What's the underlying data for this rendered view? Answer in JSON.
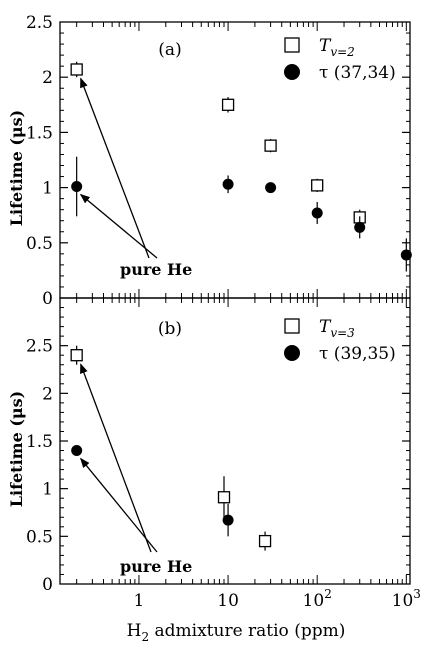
{
  "chart_data": [
    {
      "type": "scatter",
      "panel_label": "(a)",
      "ylabel": "Lifetime (μs)",
      "xscale": "log",
      "xlim": [
        0.13,
        1100
      ],
      "ylim": [
        0,
        2.5
      ],
      "yticks": [
        0,
        0.5,
        1,
        1.5,
        2,
        2.5
      ],
      "ytick_labels": [
        "0",
        "0.5",
        "1",
        "1.5",
        "2",
        "2.5"
      ],
      "legend_placement": "top-right",
      "annotation": "pure He",
      "series": [
        {
          "name_main": "T",
          "name_sub": "v=2",
          "marker": "open-square",
          "points": [
            {
              "x": 0.2,
              "y": 2.07,
              "err": 0.07
            },
            {
              "x": 10,
              "y": 1.75,
              "err": 0.07
            },
            {
              "x": 30,
              "y": 1.38,
              "err": 0.06
            },
            {
              "x": 100,
              "y": 1.02,
              "err": 0.06
            },
            {
              "x": 300,
              "y": 0.73,
              "err": 0.07
            }
          ]
        },
        {
          "name_main": "τ (37,34)",
          "name_sub": "",
          "marker": "filled-circle",
          "points": [
            {
              "x": 0.2,
              "y": 1.01,
              "err": 0.27
            },
            {
              "x": 10,
              "y": 1.03,
              "err": 0.08
            },
            {
              "x": 30,
              "y": 1.0,
              "err": 0.03
            },
            {
              "x": 100,
              "y": 0.77,
              "err": 0.1
            },
            {
              "x": 300,
              "y": 0.64,
              "err": 0.1
            },
            {
              "x": 1000,
              "y": 0.39,
              "err": 0.15
            }
          ]
        }
      ]
    },
    {
      "type": "scatter",
      "panel_label": "(b)",
      "ylabel": "Lifetime (μs)",
      "xlabel_main": "H",
      "xlabel_sub": "2",
      "xlabel_rest": " admixture ratio (ppm)",
      "xscale": "log",
      "xlim": [
        0.13,
        1100
      ],
      "ylim": [
        0,
        3
      ],
      "yticks": [
        0,
        0.5,
        1,
        1.5,
        2,
        2.5
      ],
      "ytick_labels": [
        "0",
        "0.5",
        "1",
        "1.5",
        "2",
        "2.5"
      ],
      "xticks": [
        1,
        10,
        100,
        1000
      ],
      "xtick_labels": [
        {
          "main": "1",
          "sup": ""
        },
        {
          "main": "10",
          "sup": ""
        },
        {
          "main": "10",
          "sup": "2"
        },
        {
          "main": "10",
          "sup": "3"
        }
      ],
      "legend_placement": "top-right",
      "annotation": "pure He",
      "series": [
        {
          "name_main": "T",
          "name_sub": "v=3",
          "marker": "open-square",
          "points": [
            {
              "x": 0.2,
              "y": 2.4,
              "err": 0.1
            },
            {
              "x": 9,
              "y": 0.91,
              "err": 0.22
            },
            {
              "x": 26,
              "y": 0.45,
              "err": 0.1
            }
          ]
        },
        {
          "name_main": "τ (39,35)",
          "name_sub": "",
          "marker": "filled-circle",
          "points": [
            {
              "x": 0.2,
              "y": 1.4,
              "err": 0.03
            },
            {
              "x": 10,
              "y": 0.67,
              "err": 0.17
            }
          ]
        }
      ]
    }
  ]
}
